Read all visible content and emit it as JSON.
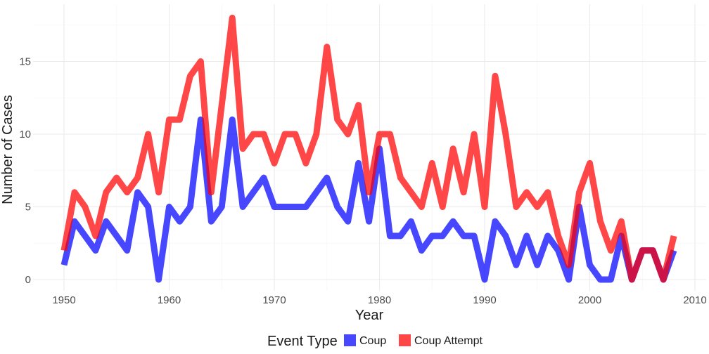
{
  "chart_data": {
    "type": "line",
    "title": "",
    "xlabel": "Year",
    "ylabel": "Number of Cases",
    "xlim": [
      1950,
      2008
    ],
    "ylim": [
      0,
      18
    ],
    "x_ticks": [
      1950,
      1960,
      1970,
      1980,
      1990,
      2000,
      2010
    ],
    "y_ticks": [
      0,
      5,
      10,
      15
    ],
    "grid": true,
    "legend": {
      "title": "Event Type",
      "position": "bottom"
    },
    "x": [
      1950,
      1951,
      1952,
      1953,
      1954,
      1955,
      1956,
      1957,
      1958,
      1959,
      1960,
      1961,
      1962,
      1963,
      1964,
      1965,
      1966,
      1967,
      1968,
      1969,
      1970,
      1971,
      1972,
      1973,
      1974,
      1975,
      1976,
      1977,
      1978,
      1979,
      1980,
      1981,
      1982,
      1983,
      1984,
      1985,
      1986,
      1987,
      1988,
      1989,
      1990,
      1991,
      1992,
      1993,
      1994,
      1995,
      1996,
      1997,
      1998,
      1999,
      2000,
      2001,
      2002,
      2003,
      2004,
      2005,
      2006,
      2007,
      2008
    ],
    "series": [
      {
        "name": "Coup",
        "color": "#0000ff",
        "values": [
          1,
          4,
          3,
          2,
          4,
          3,
          2,
          6,
          5,
          0,
          5,
          4,
          5,
          11,
          4,
          5,
          11,
          5,
          6,
          7,
          5,
          5,
          5,
          5,
          6,
          7,
          5,
          4,
          8,
          4,
          9,
          3,
          3,
          4,
          2,
          3,
          3,
          4,
          3,
          3,
          0,
          4,
          3,
          1,
          3,
          1,
          3,
          2,
          0,
          5,
          1,
          0,
          0,
          3,
          0,
          2,
          2,
          0,
          2
        ]
      },
      {
        "name": "Coup Attempt",
        "color": "#ff0000",
        "values": [
          2,
          6,
          5,
          3,
          6,
          7,
          6,
          7,
          10,
          6,
          11,
          11,
          14,
          15,
          6,
          12,
          18,
          9,
          10,
          10,
          8,
          10,
          10,
          8,
          10,
          16,
          11,
          10,
          12,
          6,
          10,
          10,
          7,
          6,
          5,
          8,
          5,
          9,
          6,
          10,
          5,
          14,
          10,
          5,
          6,
          5,
          6,
          3,
          1,
          6,
          8,
          4,
          2,
          4,
          0,
          2,
          2,
          0,
          3
        ]
      }
    ]
  }
}
